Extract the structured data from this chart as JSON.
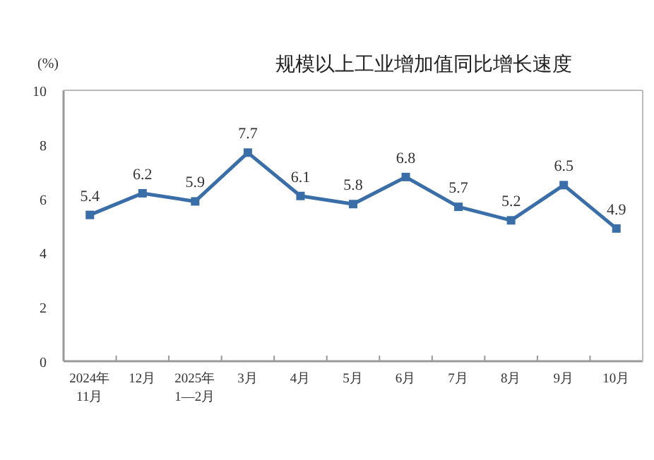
{
  "chart_data": {
    "type": "line",
    "title": "规模以上工业增加值同比增长速度",
    "ylabel": "(%)",
    "categories": [
      "2024年\n11月",
      "12月",
      "2025年\n1—2月",
      "3月",
      "4月",
      "5月",
      "6月",
      "7月",
      "8月",
      "9月",
      "10月"
    ],
    "values": [
      5.4,
      6.2,
      5.9,
      7.7,
      6.1,
      5.8,
      6.8,
      5.7,
      5.2,
      6.5,
      4.9
    ],
    "color": "#3a6ea8",
    "ylim": [
      0,
      10
    ],
    "yticks": [
      0,
      2,
      4,
      6,
      8,
      10
    ],
    "marker": "square",
    "data_labels": true
  }
}
